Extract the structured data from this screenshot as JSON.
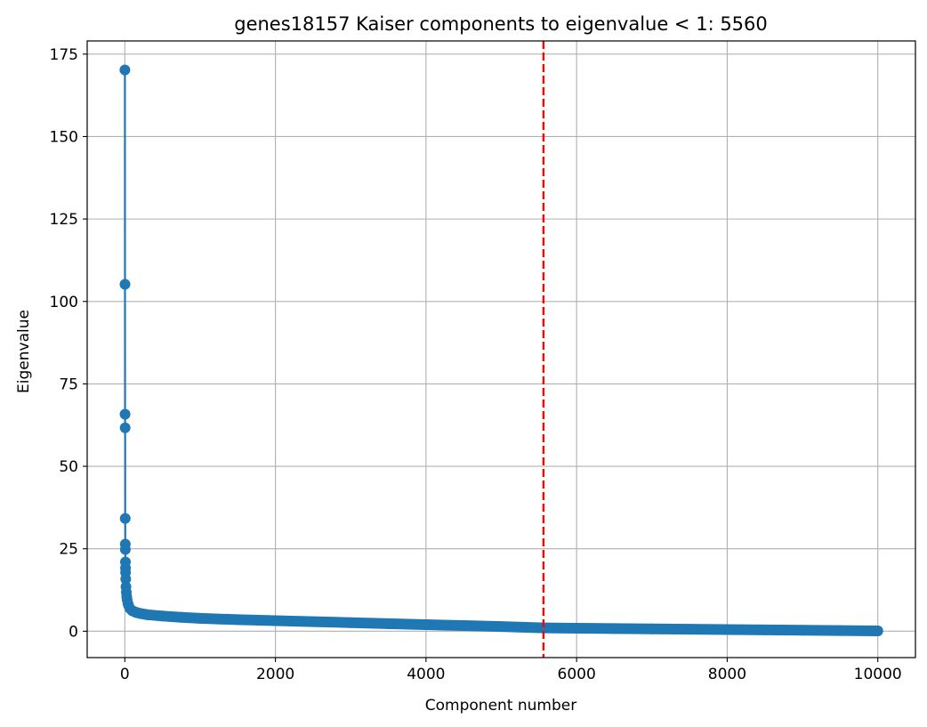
{
  "chart_data": {
    "type": "line",
    "title": "genes18157 Kaiser components to eigenvalue < 1: 5560",
    "xlabel": "Component number",
    "ylabel": "Eigenvalue",
    "xlim": [
      -500,
      10500
    ],
    "ylim": [
      -8,
      179
    ],
    "x_ticks": [
      0,
      2000,
      4000,
      6000,
      8000,
      10000
    ],
    "x_tick_labels": [
      "0",
      "2000",
      "4000",
      "6000",
      "8000",
      "10000"
    ],
    "y_ticks": [
      0,
      25,
      50,
      75,
      100,
      125,
      150,
      175
    ],
    "y_tick_labels": [
      "0",
      "25",
      "50",
      "75",
      "100",
      "125",
      "150",
      "175"
    ],
    "grid": true,
    "marker": "circle",
    "series": [
      {
        "color": "#1f77b4",
        "x": [
          1,
          2,
          3,
          4,
          5,
          6,
          7,
          8,
          9,
          10,
          12,
          15,
          20,
          25,
          30,
          40,
          50,
          70,
          100,
          150,
          200,
          300,
          500,
          750,
          1000,
          1500,
          2000,
          2500,
          3000,
          3500,
          4000,
          4500,
          5000,
          5560,
          6000,
          6500,
          7000,
          7500,
          8000,
          8500,
          9000,
          9500,
          10000
        ],
        "values": [
          170.2,
          105.2,
          65.8,
          61.7,
          34.2,
          26.4,
          24.8,
          21.0,
          19.2,
          17.8,
          15.8,
          13.5,
          11.8,
          10.5,
          9.6,
          8.5,
          7.8,
          6.8,
          6.2,
          5.7,
          5.4,
          5.0,
          4.6,
          4.2,
          3.9,
          3.5,
          3.2,
          2.9,
          2.6,
          2.3,
          2.0,
          1.7,
          1.4,
          1.0,
          0.9,
          0.8,
          0.7,
          0.6,
          0.5,
          0.4,
          0.3,
          0.2,
          0.1
        ]
      }
    ],
    "threshold_line": {
      "x": 5560,
      "color": "#ff0000",
      "style": "dashed"
    }
  }
}
